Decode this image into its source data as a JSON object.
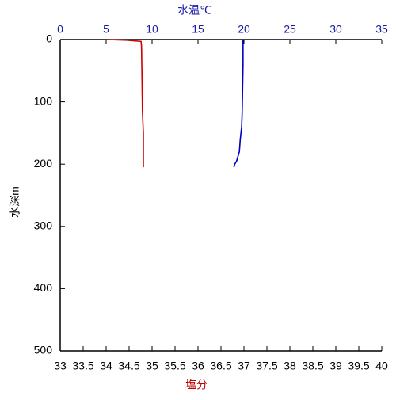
{
  "chart_data": {
    "type": "line",
    "x2label": "水温℃",
    "xlabel": "塩分",
    "ylabel": "水深m",
    "x2lim": [
      0,
      35
    ],
    "x2ticks": [
      0,
      5,
      10,
      15,
      20,
      25,
      30,
      35
    ],
    "xlim": [
      33,
      40
    ],
    "xticks": [
      33,
      33.5,
      34,
      34.5,
      35,
      35.5,
      36,
      36.5,
      37,
      37.5,
      38,
      38.5,
      39,
      39.5,
      40
    ],
    "ylim": [
      0,
      500
    ],
    "yticks": [
      0,
      100,
      200,
      300,
      400,
      500
    ],
    "y_inverted": true,
    "series": [
      {
        "color": "#0000c0",
        "xaxis": "x2",
        "x": [
          19.9,
          19.9,
          19.85,
          19.8,
          19.75,
          19.6,
          19.5,
          19.3,
          19.2,
          19.0,
          18.9
        ],
        "y": [
          0,
          40,
          80,
          120,
          140,
          160,
          180,
          190,
          195,
          200,
          205
        ]
      },
      {
        "color": "#d00000",
        "xaxis": "x",
        "x": [
          34.02,
          34.45,
          34.76,
          34.77,
          34.78,
          34.79,
          34.81,
          34.81,
          34.81
        ],
        "y": [
          0,
          1,
          3,
          10,
          60,
          115,
          150,
          180,
          205
        ]
      }
    ]
  }
}
